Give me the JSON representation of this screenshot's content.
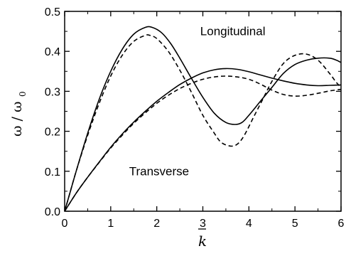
{
  "chart_data": {
    "type": "line",
    "title": "",
    "xlabel": "k",
    "xlabel_overbar": true,
    "xlabel_italic": true,
    "ylabel": "ω / ω",
    "ylabel_subscript": "0",
    "xlim": [
      0,
      6
    ],
    "ylim": [
      0,
      0.5
    ],
    "xticks": [
      0,
      1,
      2,
      3,
      4,
      5,
      6
    ],
    "xtick_labels": [
      "0",
      "1",
      "2",
      "3",
      "4",
      "5",
      "6"
    ],
    "yticks": [
      0.0,
      0.1,
      0.2,
      0.3,
      0.4,
      0.5
    ],
    "ytick_labels": [
      "0.0",
      "0.1",
      "0.2",
      "0.3",
      "0.4",
      "0.5"
    ],
    "grid": false,
    "legend": "none",
    "annotations": [
      {
        "text": "Longitudinal",
        "x": 3.65,
        "y": 0.44
      },
      {
        "text": "Transverse",
        "x": 2.05,
        "y": 0.09
      }
    ],
    "series": [
      {
        "style": "solid",
        "color": "#000000",
        "x": [
          0,
          0.1,
          0.25,
          0.5,
          0.75,
          1.0,
          1.25,
          1.5,
          1.75,
          1.9,
          2.1,
          2.3,
          2.5,
          2.75,
          3.0,
          3.25,
          3.5,
          3.7,
          3.85,
          4.0,
          4.25,
          4.5,
          4.75,
          5.0,
          5.25,
          5.5,
          5.75,
          5.9,
          6.0
        ],
        "values": [
          0.0,
          0.04,
          0.1,
          0.195,
          0.28,
          0.35,
          0.405,
          0.443,
          0.46,
          0.46,
          0.447,
          0.42,
          0.383,
          0.333,
          0.285,
          0.245,
          0.222,
          0.217,
          0.222,
          0.24,
          0.275,
          0.31,
          0.345,
          0.367,
          0.378,
          0.383,
          0.383,
          0.378,
          0.372
        ]
      },
      {
        "style": "dashed",
        "color": "#000000",
        "x": [
          0,
          0.1,
          0.25,
          0.5,
          0.75,
          1.0,
          1.25,
          1.5,
          1.75,
          1.85,
          2.0,
          2.25,
          2.5,
          2.75,
          3.0,
          3.25,
          3.4,
          3.6,
          3.75,
          3.9,
          4.1,
          4.3,
          4.5,
          4.75,
          5.0,
          5.25,
          5.5,
          5.75,
          5.9,
          6.0
        ],
        "values": [
          0.0,
          0.04,
          0.1,
          0.19,
          0.27,
          0.338,
          0.39,
          0.425,
          0.44,
          0.44,
          0.432,
          0.4,
          0.353,
          0.298,
          0.24,
          0.195,
          0.172,
          0.163,
          0.168,
          0.19,
          0.235,
          0.28,
          0.325,
          0.37,
          0.39,
          0.393,
          0.378,
          0.345,
          0.322,
          0.31
        ]
      },
      {
        "style": "solid",
        "color": "#000000",
        "x": [
          0,
          0.25,
          0.5,
          0.75,
          1.0,
          1.25,
          1.5,
          1.75,
          2.0,
          2.25,
          2.5,
          2.75,
          3.0,
          3.25,
          3.5,
          3.75,
          4.0,
          4.25,
          4.5,
          4.75,
          5.0,
          5.25,
          5.5,
          5.75,
          6.0
        ],
        "values": [
          0.0,
          0.045,
          0.085,
          0.123,
          0.16,
          0.193,
          0.223,
          0.25,
          0.275,
          0.297,
          0.317,
          0.333,
          0.346,
          0.354,
          0.357,
          0.355,
          0.349,
          0.341,
          0.333,
          0.326,
          0.32,
          0.316,
          0.314,
          0.315,
          0.316
        ]
      },
      {
        "style": "dashed",
        "color": "#000000",
        "x": [
          0,
          0.25,
          0.5,
          0.75,
          1.0,
          1.25,
          1.5,
          1.75,
          2.0,
          2.25,
          2.5,
          2.75,
          3.0,
          3.25,
          3.5,
          3.75,
          4.0,
          4.25,
          4.5,
          4.75,
          5.0,
          5.25,
          5.5,
          5.75,
          6.0
        ],
        "values": [
          0.0,
          0.045,
          0.085,
          0.122,
          0.158,
          0.19,
          0.22,
          0.246,
          0.27,
          0.29,
          0.307,
          0.32,
          0.33,
          0.336,
          0.338,
          0.336,
          0.33,
          0.318,
          0.303,
          0.292,
          0.288,
          0.29,
          0.295,
          0.301,
          0.305
        ]
      }
    ]
  }
}
